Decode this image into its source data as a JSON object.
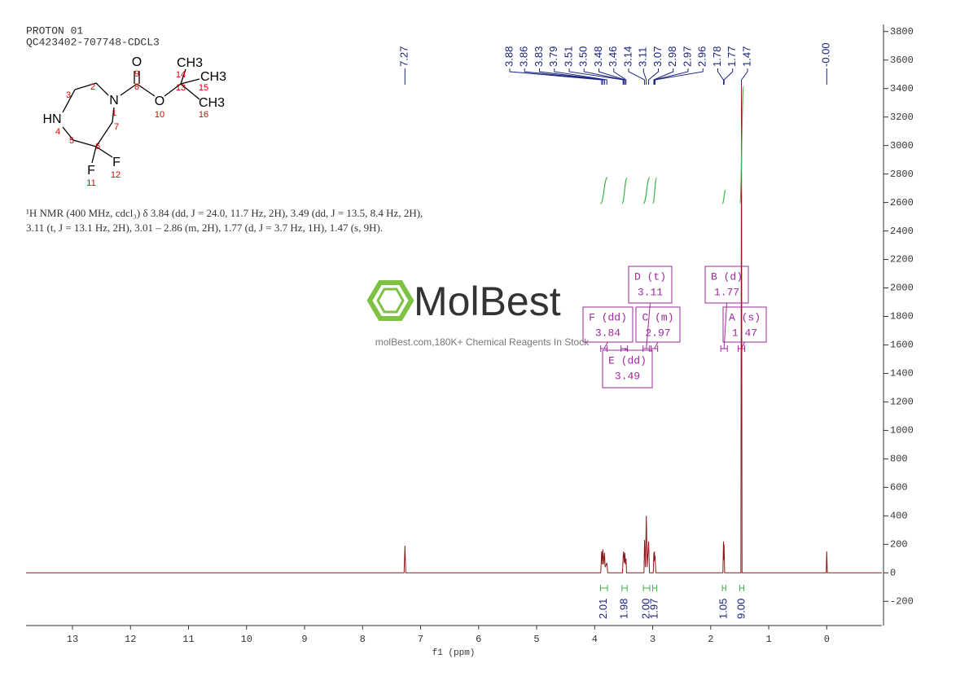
{
  "header": {
    "title": "PROTON 01",
    "subtitle": "QC423402-707748-CDCL3"
  },
  "description": [
    "¹H NMR (400 MHz, cdcl₃) δ 3.84 (dd, J = 24.0, 11.7 Hz, 2H), 3.49 (dd, J = 13.5, 8.4 Hz, 2H),",
    "3.11 (t, J = 13.1 Hz, 2H), 3.01 – 2.86 (m, 2H), 1.77 (d, J = 3.7 Hz, 1H), 1.47 (s, 9H)."
  ],
  "structure": {
    "atoms": [
      "O",
      "N",
      "O",
      "CH3",
      "CH3",
      "CH3",
      "HN",
      "F",
      "F"
    ],
    "numbers": [
      1,
      2,
      3,
      4,
      5,
      6,
      7,
      8,
      9,
      10,
      11,
      12,
      13,
      14,
      15,
      16
    ]
  },
  "watermark": {
    "brand": "MolBest",
    "tagline": "molBest.com,180K+ Chemical Reagents In Stock"
  },
  "chart_data": {
    "type": "nmr",
    "x_label": "f1 (ppm)",
    "color": "#8b1a1a",
    "x": [
      13.8,
      7.285,
      7.27,
      7.255,
      3.895,
      3.88,
      3.87,
      3.86,
      3.845,
      3.83,
      3.82,
      3.79,
      3.775,
      3.52,
      3.51,
      3.5,
      3.49,
      3.48,
      3.47,
      3.46,
      3.45,
      3.15,
      3.14,
      3.125,
      3.11,
      3.095,
      3.07,
      3.055,
      2.99,
      2.98,
      2.975,
      2.97,
      2.965,
      2.96,
      2.945,
      1.79,
      1.78,
      1.775,
      1.77,
      1.76,
      1.48,
      1.47,
      1.46,
      0.01,
      0,
      -0.01,
      -0.95
    ],
    "values": [
      0,
      0,
      190,
      0,
      0,
      150,
      60,
      165,
      60,
      140,
      40,
      70,
      0,
      0,
      110,
      150,
      70,
      140,
      60,
      100,
      0,
      0,
      230,
      40,
      400,
      40,
      220,
      0,
      0,
      140,
      80,
      150,
      90,
      120,
      0,
      0,
      220,
      90,
      200,
      0,
      0,
      3430,
      0,
      0,
      150,
      0,
      0
    ],
    "xlim": [
      13.8,
      -0.95
    ],
    "xticks": [
      13,
      12,
      11,
      10,
      9,
      8,
      7,
      6,
      5,
      4,
      3,
      2,
      1,
      0
    ],
    "ylim": [
      -370,
      3850
    ],
    "yticks": [
      -200,
      0,
      200,
      400,
      600,
      800,
      1000,
      1200,
      1400,
      1600,
      1800,
      2000,
      2200,
      2400,
      2600,
      2800,
      3000,
      3200,
      3400,
      3600,
      3800
    ],
    "peak_labels": [
      7.27,
      3.88,
      3.86,
      3.83,
      3.79,
      3.51,
      {
        "value": 3.5,
        "label": "3.50"
      },
      3.48,
      3.46,
      3.14,
      3.11,
      3.07,
      2.98,
      2.97,
      2.96,
      1.78,
      1.77,
      1.47,
      {
        "value": 0,
        "label": "-0.00"
      }
    ],
    "peak_label_color": "#1a237e",
    "integral_color": "#3cb34a",
    "integrals": [
      {
        "range": [
          3.9,
          3.78
        ],
        "value": 2.01
      },
      {
        "range": [
          3.53,
          3.44
        ],
        "value": 1.98
      },
      {
        "range": [
          3.16,
          3.05
        ],
        "value": {
          "value": 2,
          "label": "2.00"
        }
      },
      {
        "range": [
          3.0,
          2.93
        ],
        "value": 1.97
      },
      {
        "range": [
          1.8,
          1.74
        ],
        "value": 1.05
      },
      {
        "range": [
          1.5,
          1.43
        ],
        "value": {
          "value": 9,
          "label": "9.00"
        }
      }
    ],
    "multiplet_color": "#9c2a9c",
    "multiplets": [
      {
        "label": "A (s)",
        "shift": 1.47
      },
      {
        "label": "B (d)",
        "shift": 1.77
      },
      {
        "label": "C (m)",
        "shift": 2.97
      },
      {
        "label": "D (t)",
        "shift": 3.11
      },
      {
        "label": "E (dd)",
        "shift": 3.49
      },
      {
        "label": "F (dd)",
        "shift": 3.84
      }
    ]
  }
}
